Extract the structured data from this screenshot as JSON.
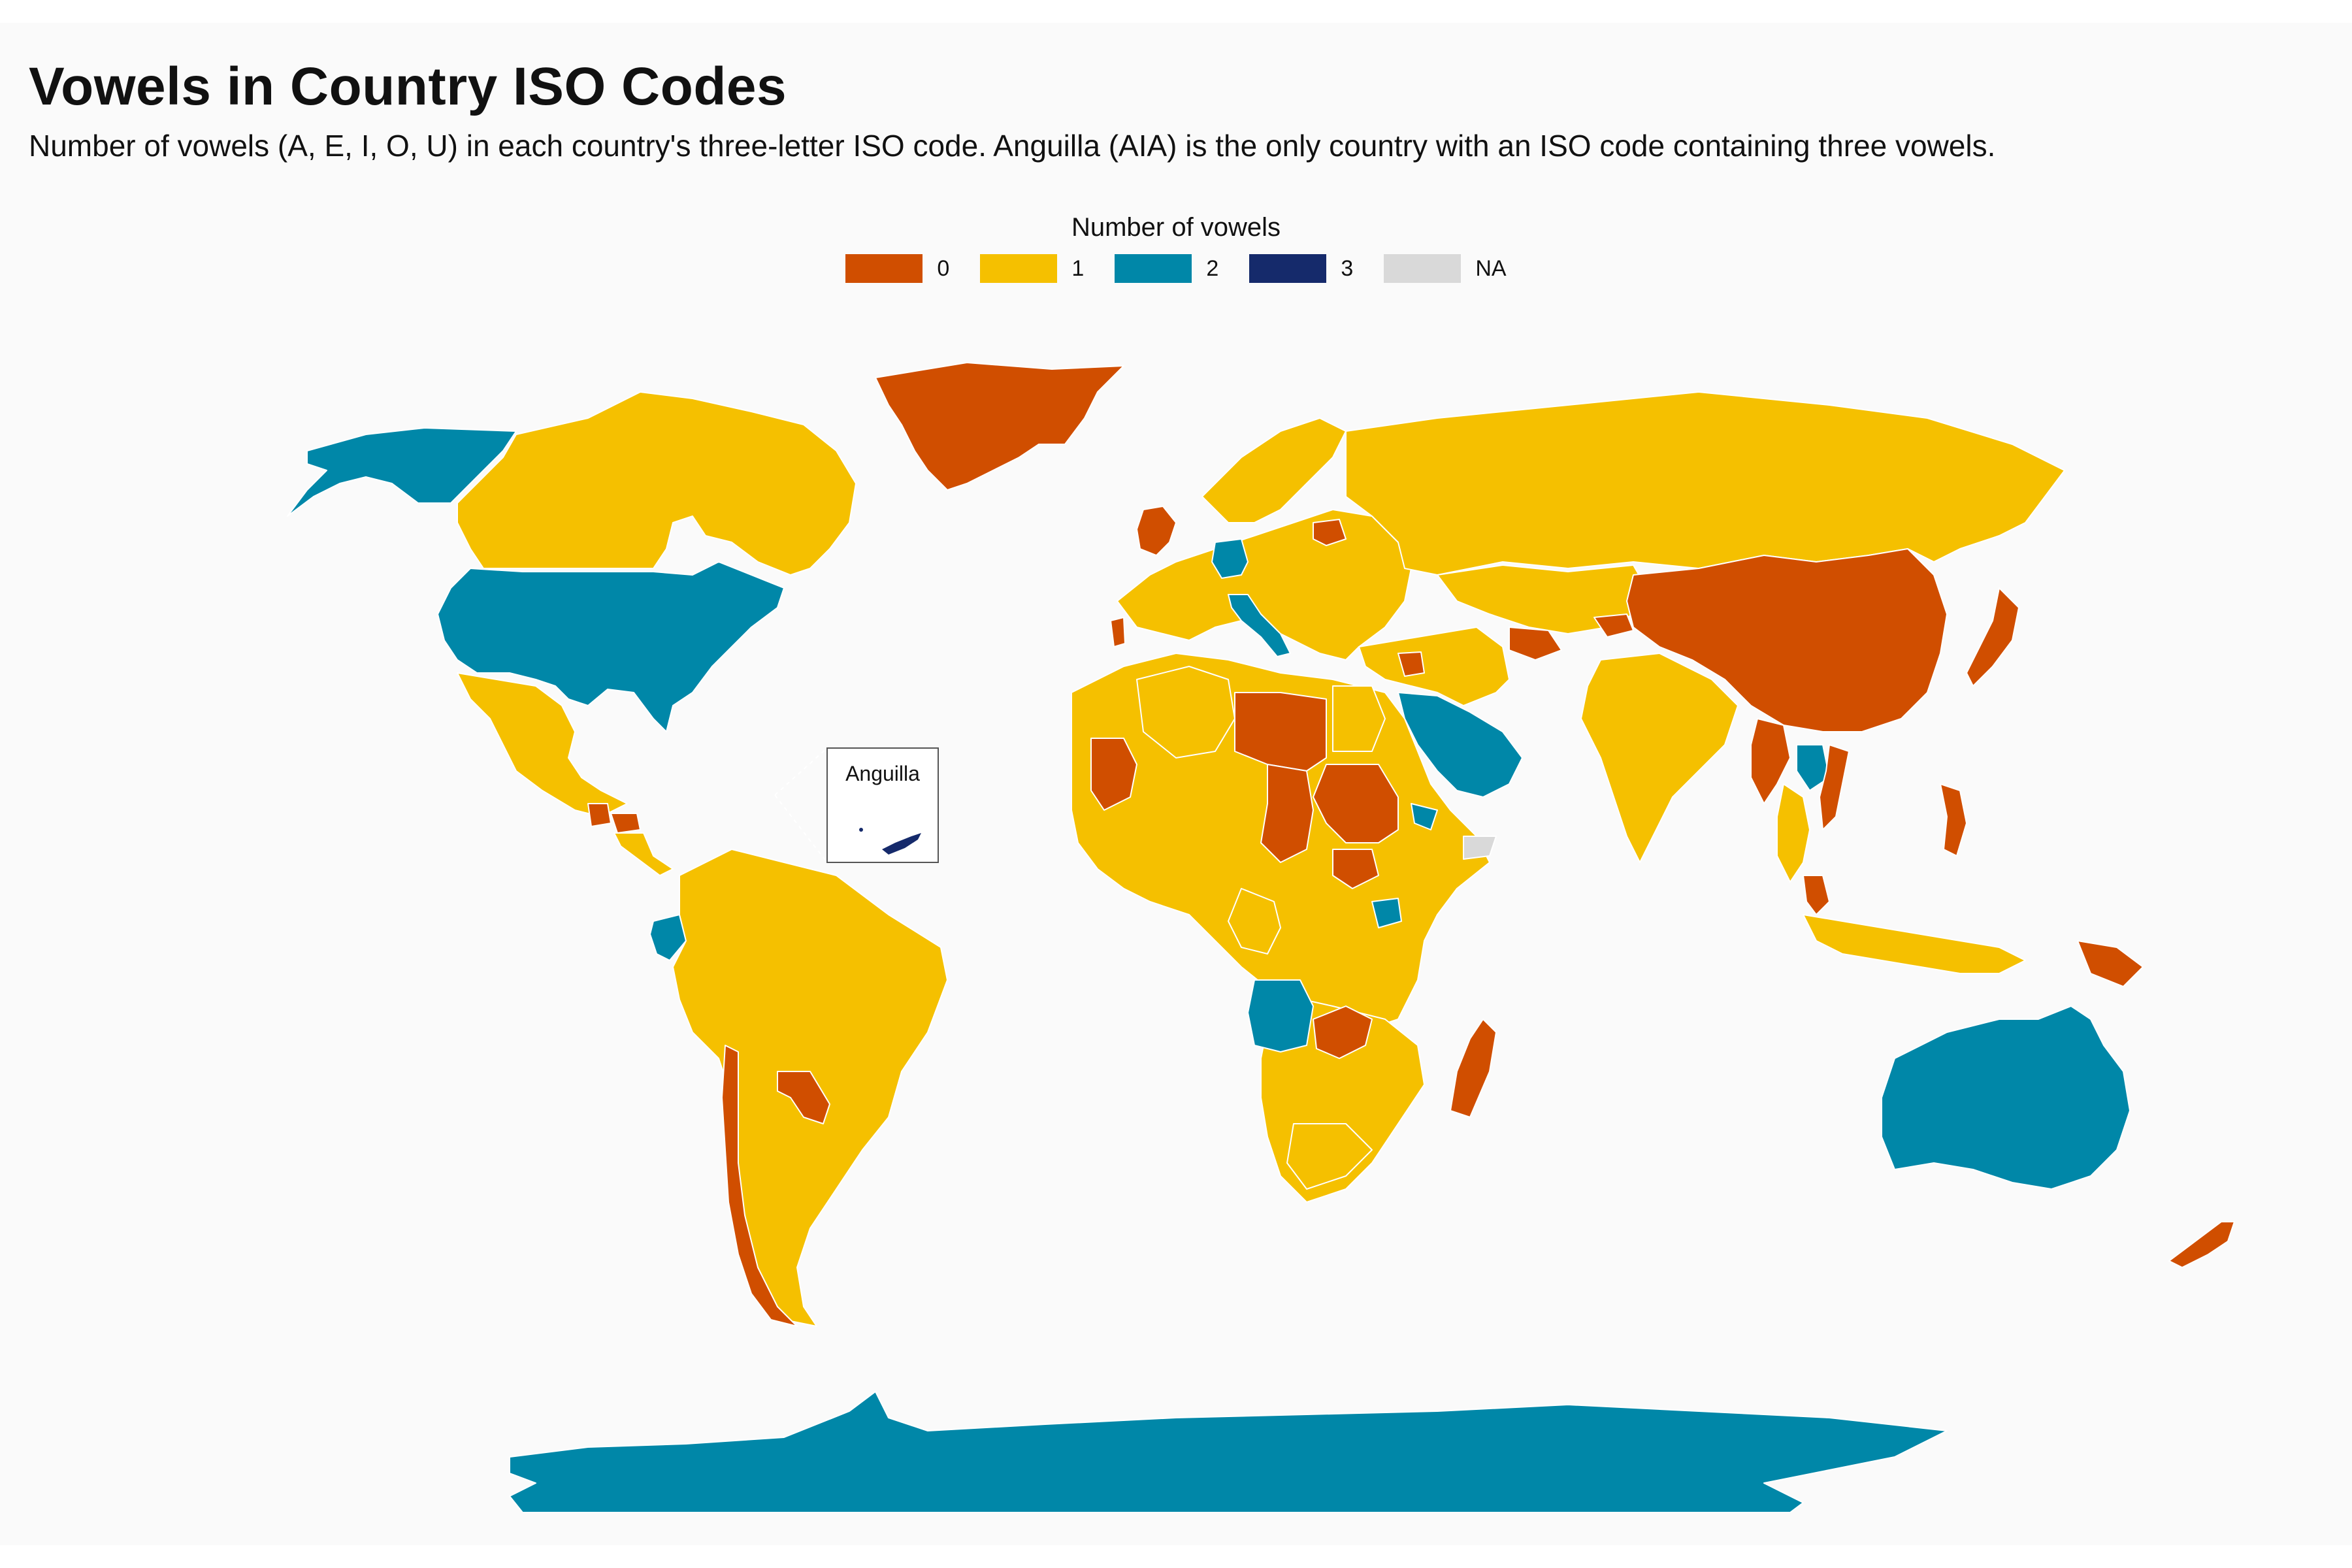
{
  "title": "Vowels in Country ISO Codes",
  "subtitle": "Number of vowels (A, E, I, O, U) in each country's three-letter ISO code. Anguilla (AIA) is the only country with an ISO code containing three vowels.",
  "legend": {
    "title": "Number of vowels",
    "items": [
      {
        "label": "0",
        "color": "#d04e00"
      },
      {
        "label": "1",
        "color": "#f5c000"
      },
      {
        "label": "2",
        "color": "#0087a8"
      },
      {
        "label": "3",
        "color": "#152a6b"
      },
      {
        "label": "NA",
        "color": "#d9d9d9"
      }
    ]
  },
  "inset": {
    "label": "Anguilla",
    "vowels": 3
  },
  "map_data": {
    "type": "choropleth",
    "variable": "Number of vowels",
    "regions": [
      {
        "name": "Greenland",
        "iso": "GRL",
        "vowels": 0
      },
      {
        "name": "United Kingdom",
        "iso": "GBR",
        "vowels": 0
      },
      {
        "name": "China",
        "iso": "CHN",
        "vowels": 0
      },
      {
        "name": "Japan",
        "iso": "JPN",
        "vowels": 0
      },
      {
        "name": "Libya",
        "iso": "LBY",
        "vowels": 0
      },
      {
        "name": "Chad",
        "iso": "TCD",
        "vowels": 0
      },
      {
        "name": "Sudan",
        "iso": "SDN",
        "vowels": 0
      },
      {
        "name": "Mauritania",
        "iso": "MRT",
        "vowels": 0
      },
      {
        "name": "Madagascar",
        "iso": "MDG",
        "vowels": 0
      },
      {
        "name": "Chile",
        "iso": "CHL",
        "vowels": 0
      },
      {
        "name": "Paraguay",
        "iso": "PRY",
        "vowels": 0
      },
      {
        "name": "New Zealand",
        "iso": "NZL",
        "vowels": 0
      },
      {
        "name": "Papua New Guinea",
        "iso": "PNG",
        "vowels": 0
      },
      {
        "name": "Philippines",
        "iso": "PHL",
        "vowels": 0
      },
      {
        "name": "Malaysia",
        "iso": "MYS",
        "vowels": 0
      },
      {
        "name": "Myanmar",
        "iso": "MMR",
        "vowels": 0
      },
      {
        "name": "Vietnam",
        "iso": "VNM",
        "vowels": 0
      },
      {
        "name": "Zambia",
        "iso": "ZMB",
        "vowels": 0
      },
      {
        "name": "Congo",
        "iso": "COG",
        "vowels": 1
      },
      {
        "name": "Kyrgyzstan",
        "iso": "KGZ",
        "vowels": 0
      },
      {
        "name": "Turkmenistan",
        "iso": "TKM",
        "vowels": 0
      },
      {
        "name": "Syria",
        "iso": "SYR",
        "vowels": 0
      },
      {
        "name": "Belarus",
        "iso": "BLR",
        "vowels": 0
      },
      {
        "name": "Guatemala",
        "iso": "GTM",
        "vowels": 0
      },
      {
        "name": "Honduras",
        "iso": "HND",
        "vowels": 0
      },
      {
        "name": "Portugal",
        "iso": "PRT",
        "vowels": 0
      },
      {
        "name": "Canada",
        "iso": "CAN",
        "vowels": 1
      },
      {
        "name": "Russia",
        "iso": "RUS",
        "vowels": 1
      },
      {
        "name": "Brazil",
        "iso": "BRA",
        "vowels": 1
      },
      {
        "name": "Argentina",
        "iso": "ARG",
        "vowels": 1
      },
      {
        "name": "India",
        "iso": "IND",
        "vowels": 1
      },
      {
        "name": "Mexico",
        "iso": "MEX",
        "vowels": 1
      },
      {
        "name": "Indonesia",
        "iso": "IDN",
        "vowels": 1
      },
      {
        "name": "South Africa",
        "iso": "ZAF",
        "vowels": 1
      },
      {
        "name": "Egypt",
        "iso": "EGY",
        "vowels": 1
      },
      {
        "name": "Algeria",
        "iso": "DZA",
        "vowels": 1
      },
      {
        "name": "Kazakhstan",
        "iso": "KAZ",
        "vowels": 1
      },
      {
        "name": "United States",
        "iso": "USA",
        "vowels": 2
      },
      {
        "name": "Alaska (United States)",
        "iso": "USA",
        "vowels": 2
      },
      {
        "name": "Australia",
        "iso": "AUS",
        "vowels": 2
      },
      {
        "name": "Antarctica",
        "iso": "ATA",
        "vowels": 2
      },
      {
        "name": "Saudi Arabia",
        "iso": "SAU",
        "vowels": 2
      },
      {
        "name": "Angola",
        "iso": "AGO",
        "vowels": 2
      },
      {
        "name": "Ecuador",
        "iso": "ECU",
        "vowels": 2
      },
      {
        "name": "Germany",
        "iso": "DEU",
        "vowels": 2
      },
      {
        "name": "Italy",
        "iso": "ITA",
        "vowels": 2
      },
      {
        "name": "Laos",
        "iso": "LAO",
        "vowels": 2
      },
      {
        "name": "Uganda",
        "iso": "UGA",
        "vowels": 2
      },
      {
        "name": "Eritrea",
        "iso": "ERI",
        "vowels": 2
      },
      {
        "name": "Anguilla",
        "iso": "AIA",
        "vowels": 3
      },
      {
        "name": "South Sudan",
        "iso": "SSD",
        "vowels": 0
      },
      {
        "name": "Somaliland",
        "iso": null,
        "vowels": null
      }
    ]
  }
}
